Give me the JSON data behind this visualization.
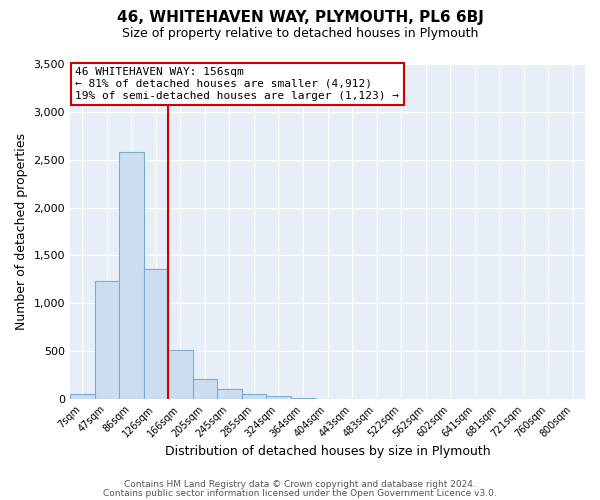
{
  "title": "46, WHITEHAVEN WAY, PLYMOUTH, PL6 6BJ",
  "subtitle": "Size of property relative to detached houses in Plymouth",
  "xlabel": "Distribution of detached houses by size in Plymouth",
  "ylabel": "Number of detached properties",
  "bar_color": "#ccddf0",
  "bar_edge_color": "#7aadd4",
  "bin_labels": [
    "7sqm",
    "47sqm",
    "86sqm",
    "126sqm",
    "166sqm",
    "205sqm",
    "245sqm",
    "285sqm",
    "324sqm",
    "364sqm",
    "404sqm",
    "443sqm",
    "483sqm",
    "522sqm",
    "562sqm",
    "602sqm",
    "641sqm",
    "681sqm",
    "721sqm",
    "760sqm",
    "800sqm"
  ],
  "bin_values": [
    50,
    1230,
    2580,
    1360,
    510,
    205,
    110,
    50,
    35,
    10,
    0,
    0,
    0,
    0,
    0,
    0,
    0,
    0,
    0,
    0,
    0
  ],
  "vline_x_index": 4,
  "vline_color": "#cc0000",
  "ann_line1": "46 WHITEHAVEN WAY: 156sqm",
  "ann_line2": "← 81% of detached houses are smaller (4,912)",
  "ann_line3": "19% of semi-detached houses are larger (1,123) →",
  "ylim": [
    0,
    3500
  ],
  "yticks": [
    0,
    500,
    1000,
    1500,
    2000,
    2500,
    3000,
    3500
  ],
  "footer_line1": "Contains HM Land Registry data © Crown copyright and database right 2024.",
  "footer_line2": "Contains public sector information licensed under the Open Government Licence v3.0.",
  "fig_bg_color": "#ffffff",
  "plot_bg_color": "#e8eef8",
  "grid_color": "#ffffff",
  "title_fontsize": 11,
  "subtitle_fontsize": 9,
  "xlabel_fontsize": 9,
  "ylabel_fontsize": 9,
  "tick_fontsize": 7,
  "ytick_fontsize": 8,
  "ann_fontsize": 8,
  "footer_fontsize": 6.5
}
